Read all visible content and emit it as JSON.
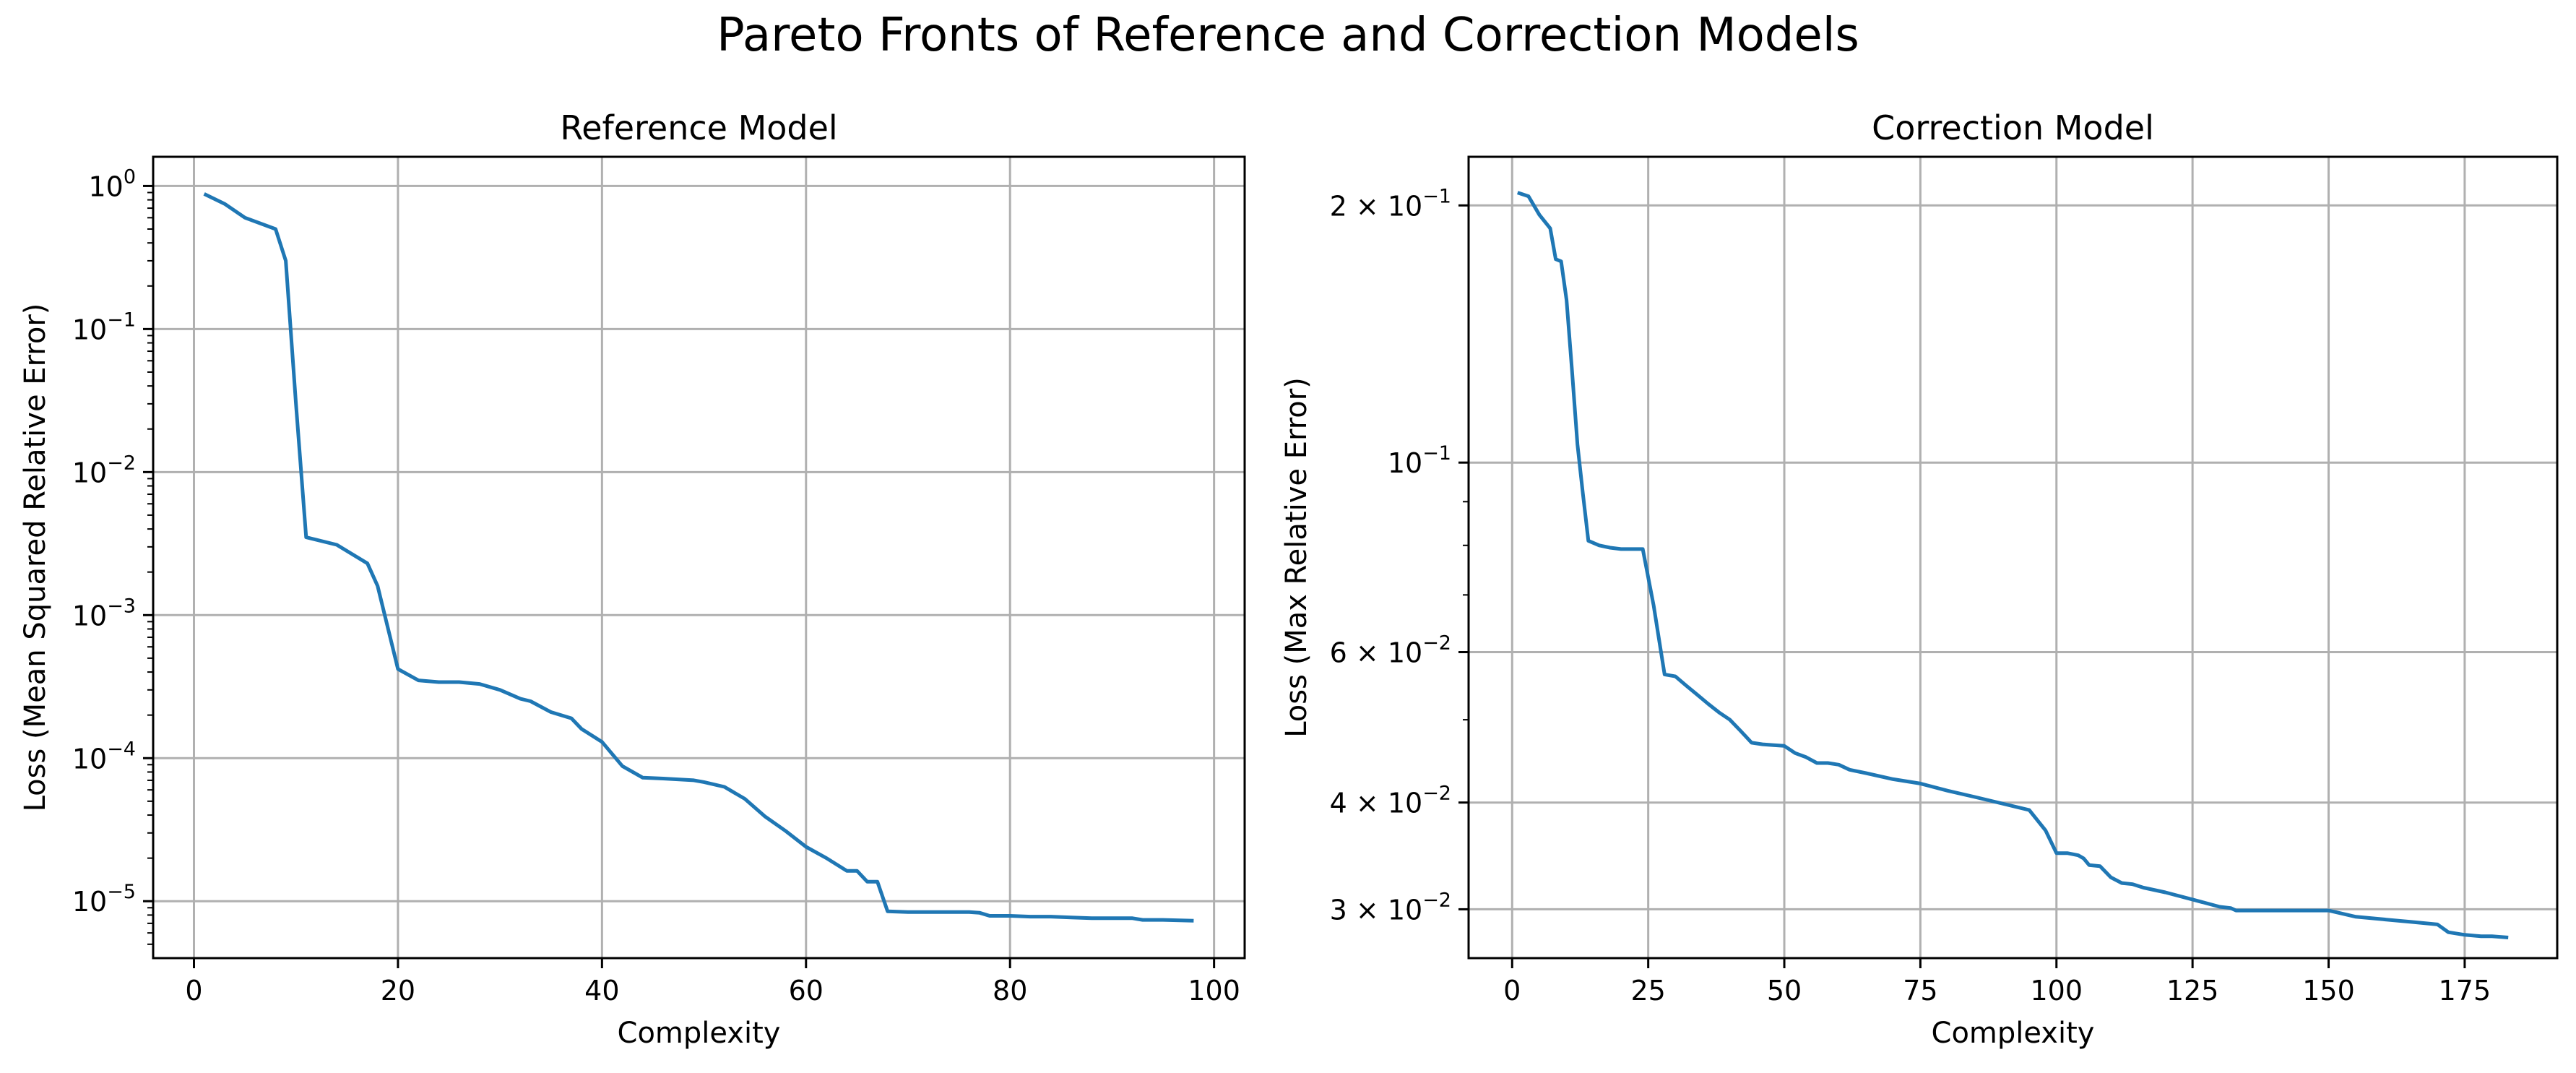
{
  "suptitle": "Pareto Fronts of Reference and Correction Models",
  "colors": {
    "line": "#1f77b4",
    "grid": "#b0b0b0",
    "axes": "#000000"
  },
  "chart_data": [
    {
      "type": "line",
      "title": "Reference Model",
      "xlabel": "Complexity",
      "ylabel": "Loss (Mean Squared Relative Error)",
      "yscale": "log",
      "xlim": [
        -4,
        103
      ],
      "ylim": [
        4e-06,
        1.6
      ],
      "grid": true,
      "xticks": [
        0,
        20,
        40,
        60,
        80,
        100
      ],
      "xtick_labels": [
        "0",
        "20",
        "40",
        "60",
        "80",
        "100"
      ],
      "yticks": [
        1e-05,
        0.0001,
        0.001,
        0.01,
        0.1,
        1
      ],
      "ytick_labels": [
        [
          "10",
          "−5"
        ],
        [
          "10",
          "−4"
        ],
        [
          "10",
          "−3"
        ],
        [
          "10",
          "−2"
        ],
        [
          "10",
          "−1"
        ],
        [
          "10",
          "0"
        ]
      ],
      "series": [
        {
          "x": [
            1,
            3,
            5,
            8,
            9,
            10,
            11,
            14,
            17,
            18,
            20,
            22,
            24,
            26,
            28,
            30,
            32,
            33,
            35,
            37,
            38,
            40,
            42,
            44,
            46,
            49,
            50,
            52,
            54,
            56,
            58,
            60,
            62,
            64,
            65,
            66,
            67,
            68,
            70,
            72,
            74,
            76,
            77,
            78,
            80,
            82,
            84,
            86,
            88,
            90,
            92,
            93,
            95,
            98
          ],
          "y": [
            0.88,
            0.75,
            0.6,
            0.5,
            0.3,
            0.03,
            0.0035,
            0.0031,
            0.0023,
            0.0016,
            0.00042,
            0.00035,
            0.00034,
            0.00034,
            0.00033,
            0.0003,
            0.00026,
            0.00025,
            0.00021,
            0.00019,
            0.00016,
            0.00013,
            8.8e-05,
            7.3e-05,
            7.2e-05,
            7e-05,
            6.8e-05,
            6.3e-05,
            5.2e-05,
            3.9e-05,
            3.1e-05,
            2.4e-05,
            2e-05,
            1.63e-05,
            1.63e-05,
            1.37e-05,
            1.37e-05,
            8.5e-06,
            8.4e-06,
            8.4e-06,
            8.4e-06,
            8.4e-06,
            8.3e-06,
            7.9e-06,
            7.9e-06,
            7.8e-06,
            7.8e-06,
            7.7e-06,
            7.6e-06,
            7.6e-06,
            7.6e-06,
            7.4e-06,
            7.4e-06,
            7.3e-06
          ]
        }
      ]
    },
    {
      "type": "line",
      "title": "Correction Model",
      "xlabel": "Complexity",
      "ylabel": "Loss (Max Relative Error)",
      "yscale": "log",
      "xlim": [
        -8,
        192
      ],
      "ylim": [
        0.0263,
        0.228
      ],
      "grid": true,
      "xticks": [
        0,
        25,
        50,
        75,
        100,
        125,
        150,
        175
      ],
      "xtick_labels": [
        "0",
        "25",
        "50",
        "75",
        "100",
        "125",
        "150",
        "175"
      ],
      "yticks": [
        0.03,
        0.04,
        0.06,
        0.1,
        0.2
      ],
      "ytick_labels": [
        [
          "3 × 10",
          "−2"
        ],
        [
          "4 × 10",
          "−2"
        ],
        [
          "6 × 10",
          "−2"
        ],
        [
          "10",
          "−1"
        ],
        [
          "2 × 10",
          "−1"
        ]
      ],
      "yminor_ticks": [
        0.05,
        0.07,
        0.08,
        0.09
      ],
      "series": [
        {
          "x": [
            1,
            3,
            5,
            7,
            8,
            9,
            10,
            11,
            12,
            13,
            14,
            16,
            18,
            20,
            22,
            24,
            26,
            28,
            30,
            32,
            34,
            36,
            38,
            40,
            42,
            44,
            46,
            48,
            50,
            52,
            54,
            56,
            58,
            60,
            62,
            65,
            70,
            75,
            80,
            85,
            90,
            95,
            98,
            100,
            102,
            104,
            105,
            106,
            108,
            110,
            112,
            114,
            116,
            120,
            125,
            130,
            132,
            133,
            135,
            140,
            145,
            150,
            155,
            160,
            165,
            170,
            172,
            175,
            178,
            180,
            183
          ],
          "y": [
            0.207,
            0.205,
            0.195,
            0.188,
            0.173,
            0.172,
            0.155,
            0.128,
            0.105,
            0.092,
            0.081,
            0.08,
            0.0795,
            0.0792,
            0.0792,
            0.0792,
            0.068,
            0.0565,
            0.0562,
            0.0548,
            0.0535,
            0.0522,
            0.051,
            0.05,
            0.0485,
            0.047,
            0.0468,
            0.0467,
            0.0466,
            0.0457,
            0.0452,
            0.0445,
            0.0445,
            0.0443,
            0.0437,
            0.0433,
            0.0426,
            0.0421,
            0.0413,
            0.0406,
            0.0399,
            0.0392,
            0.0371,
            0.0349,
            0.0349,
            0.0347,
            0.0344,
            0.0338,
            0.0337,
            0.0327,
            0.0322,
            0.0321,
            0.0318,
            0.0314,
            0.0308,
            0.0302,
            0.0301,
            0.0299,
            0.0299,
            0.0299,
            0.0299,
            0.0299,
            0.0294,
            0.0292,
            0.029,
            0.0288,
            0.0282,
            0.028,
            0.0279,
            0.0279,
            0.0278
          ]
        }
      ]
    }
  ]
}
